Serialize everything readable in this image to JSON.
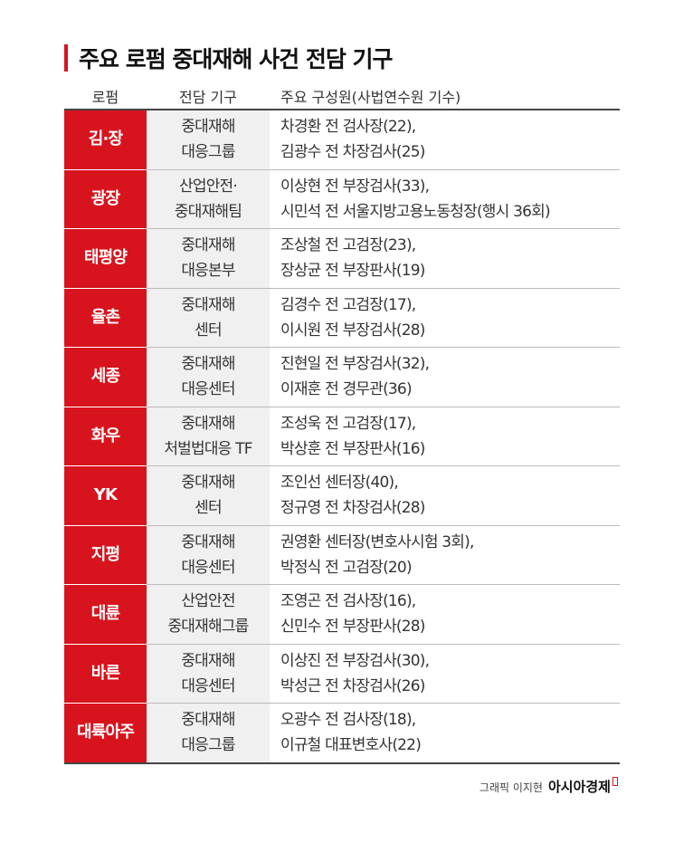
{
  "title": "주요 로펌 중대재해 사건 전담 기구",
  "headers": [
    "로펌",
    "전담 기구",
    "주요 구성원(사법연수원 기수)"
  ],
  "accent_color": "#d7141e",
  "rows": [
    {
      "firm": "김·장",
      "org": [
        "중대재해",
        "대응그룹"
      ],
      "members": [
        "차경환 전 검사장(22),",
        "김광수 전 차장검사(25)"
      ]
    },
    {
      "firm": "광장",
      "org": [
        "산업안전·",
        "중대재해팀"
      ],
      "members": [
        "이상현 전 부장검사(33),",
        "시민석 전 서울지방고용노동청장(행시 36회)"
      ]
    },
    {
      "firm": "태평양",
      "org": [
        "중대재해",
        "대응본부"
      ],
      "members": [
        "조상철 전 고검장(23),",
        "장상균 전 부장판사(19)"
      ]
    },
    {
      "firm": "율촌",
      "org": [
        "중대재해",
        "센터"
      ],
      "members": [
        "김경수 전 고검장(17),",
        "이시원 전 부장검사(28)"
      ]
    },
    {
      "firm": "세종",
      "org": [
        "중대재해",
        "대응센터"
      ],
      "members": [
        "진현일 전 부장검사(32),",
        "이재훈 전 경무관(36)"
      ]
    },
    {
      "firm": "화우",
      "org": [
        "중대재해",
        "처벌법대응 TF"
      ],
      "members": [
        "조성욱 전 고검장(17),",
        "박상훈 전 부장판사(16)"
      ]
    },
    {
      "firm": "YK",
      "org": [
        "중대재해",
        "센터"
      ],
      "members": [
        "조인선 센터장(40),",
        "정규영 전 차장검사(28)"
      ]
    },
    {
      "firm": "지평",
      "org": [
        "중대재해",
        "대응센터"
      ],
      "members": [
        "권영환 센터장(변호사시험 3회),",
        "박정식 전 고검장(20)"
      ]
    },
    {
      "firm": "대륜",
      "org": [
        "산업안전",
        "중대재해그룹"
      ],
      "members": [
        "조영곤 전 검사장(16),",
        "신민수 전 부장판사(28)"
      ]
    },
    {
      "firm": "바른",
      "org": [
        "중대재해",
        "대응센터"
      ],
      "members": [
        "이상진 전 부장검사(30),",
        "박성근 전 차장검사(26)"
      ]
    },
    {
      "firm": "대륙아주",
      "org": [
        "중대재해",
        "대응그룹"
      ],
      "members": [
        "오광수 전 검사장(18),",
        "이규철 대표변호사(22)"
      ]
    }
  ],
  "footer": {
    "credit": "그래픽 이지현",
    "brand": "아시아경제"
  }
}
